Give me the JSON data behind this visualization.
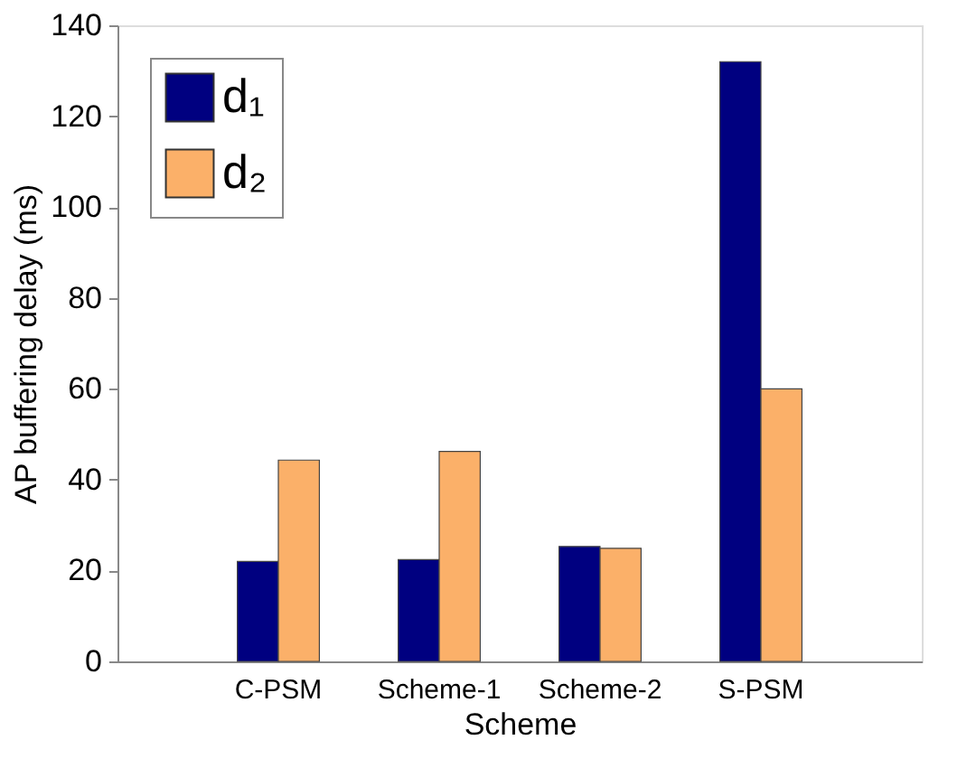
{
  "chart_data": {
    "type": "bar",
    "xlabel": "Scheme",
    "ylabel": "AP buffering delay (ms)",
    "categories": [
      "C-PSM",
      "Scheme-1",
      "Scheme-2",
      "S-PSM"
    ],
    "series": [
      {
        "name": "d₁",
        "color": "#000080",
        "values": [
          22,
          22.4,
          25.3,
          132
        ]
      },
      {
        "name": "d₂",
        "color": "#fbb069",
        "values": [
          44.3,
          46.2,
          24.9,
          60
        ]
      }
    ],
    "ylim": [
      0,
      140
    ],
    "yticks": [
      0,
      20,
      40,
      60,
      80,
      100,
      120,
      140
    ],
    "grid": false,
    "legend": "top left"
  }
}
